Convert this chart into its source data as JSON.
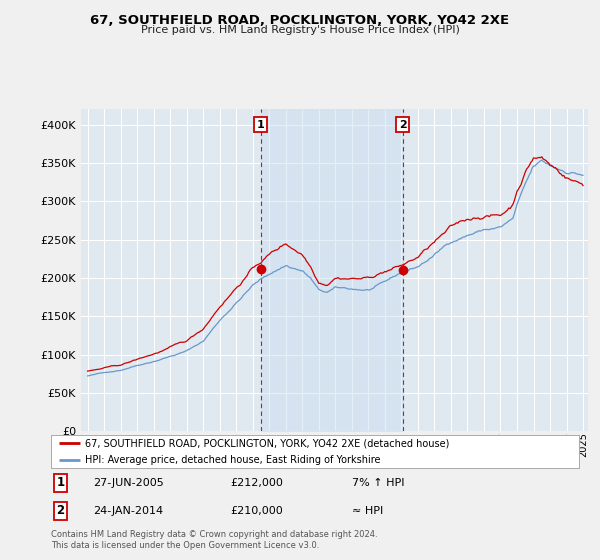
{
  "title": "67, SOUTHFIELD ROAD, POCKLINGTON, YORK, YO42 2XE",
  "subtitle": "Price paid vs. HM Land Registry's House Price Index (HPI)",
  "legend_line1": "67, SOUTHFIELD ROAD, POCKLINGTON, YORK, YO42 2XE (detached house)",
  "legend_line2": "HPI: Average price, detached house, East Riding of Yorkshire",
  "annotation1_label": "1",
  "annotation1_date": "27-JUN-2005",
  "annotation1_price": "£212,000",
  "annotation1_hpi": "7% ↑ HPI",
  "annotation2_label": "2",
  "annotation2_date": "24-JAN-2014",
  "annotation2_price": "£210,000",
  "annotation2_hpi": "≈ HPI",
  "footer": "Contains HM Land Registry data © Crown copyright and database right 2024.\nThis data is licensed under the Open Government Licence v3.0.",
  "bg_color": "#f0f0f0",
  "plot_bg_color": "#e0e8f0",
  "red_color": "#cc0000",
  "blue_color": "#6699cc",
  "fill_color": "#cce0f0",
  "grid_color": "#ffffff",
  "ylim": [
    0,
    420000
  ],
  "yticks": [
    0,
    50000,
    100000,
    150000,
    200000,
    250000,
    300000,
    350000,
    400000
  ],
  "sale1_year": 2005.49,
  "sale1_price": 212000,
  "sale2_year": 2014.07,
  "sale2_price": 210000
}
